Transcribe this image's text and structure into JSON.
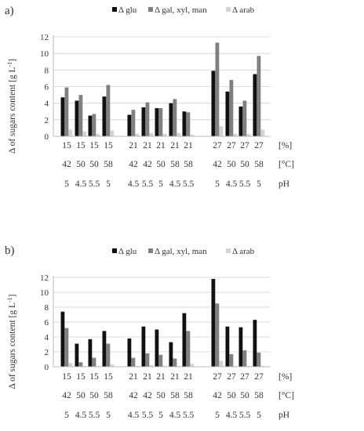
{
  "colors": {
    "glu": "#111111",
    "gal": "#808080",
    "arab": "#d3d3d3",
    "axis": "#bdbdbd",
    "grid": "#d0d0d0",
    "text": "#333333"
  },
  "chart_data": [
    {
      "panel_label": "a)",
      "type": "bar",
      "ylabel_main": "Δ of sugars content [g L",
      "ylabel_sup": "-1",
      "ylabel_end": "]",
      "ylim": [
        0,
        12
      ],
      "yticks": [
        "0",
        "2",
        "4",
        "6",
        "8",
        "10",
        "12"
      ],
      "grid": "horizontal",
      "legend_position": "top-center",
      "row_units": [
        "[%]",
        "[°C]",
        "pH"
      ],
      "groups": [
        {
          "row1": "15",
          "row2": "42",
          "row3": "5"
        },
        {
          "row1": "15",
          "row2": "50",
          "row3": "4.5"
        },
        {
          "row1": "15",
          "row2": "50",
          "row3": "5.5"
        },
        {
          "row1": "15",
          "row2": "58",
          "row3": "5"
        },
        {
          "row1": "21",
          "row2": "42",
          "row3": "4.5"
        },
        {
          "row1": "21",
          "row2": "42",
          "row3": "5.5"
        },
        {
          "row1": "21",
          "row2": "50",
          "row3": "5"
        },
        {
          "row1": "21",
          "row2": "58",
          "row3": "4.5"
        },
        {
          "row1": "21",
          "row2": "58",
          "row3": "5.5"
        },
        {
          "row1": "27",
          "row2": "42",
          "row3": "5"
        },
        {
          "row1": "27",
          "row2": "50",
          "row3": "4.5"
        },
        {
          "row1": "27",
          "row2": "50",
          "row3": "5.5"
        },
        {
          "row1": "27",
          "row2": "58",
          "row3": "5"
        }
      ],
      "series": [
        {
          "name": "Δ glu",
          "key": "glu",
          "values": [
            4.7,
            4.3,
            2.5,
            4.8,
            2.6,
            3.5,
            3.4,
            4.0,
            3.0,
            7.9,
            5.4,
            3.6,
            7.5
          ]
        },
        {
          "name": "Δ gal, xyl, man",
          "key": "gal",
          "values": [
            5.9,
            5.0,
            2.7,
            6.2,
            3.2,
            4.1,
            3.4,
            4.5,
            2.9,
            11.3,
            6.8,
            4.3,
            9.7
          ]
        },
        {
          "name": "Δ arab",
          "key": "arab",
          "values": [
            0.8,
            0.6,
            0.3,
            0.7,
            0.3,
            0.4,
            0.3,
            0.4,
            0.2,
            1.2,
            0.3,
            0.3,
            0.8
          ]
        }
      ]
    },
    {
      "panel_label": "b)",
      "type": "bar",
      "ylabel_main": "Δ of sugars content [g L",
      "ylabel_sup": "-1",
      "ylabel_end": "]",
      "ylim": [
        0,
        12
      ],
      "yticks": [
        "0",
        "2",
        "4",
        "6",
        "8",
        "10",
        "12"
      ],
      "grid": "horizontal",
      "legend_position": "top-center",
      "row_units": [
        "[%]",
        "[°C]",
        "pH"
      ],
      "groups": [
        {
          "row1": "15",
          "row2": "42",
          "row3": "5"
        },
        {
          "row1": "15",
          "row2": "50",
          "row3": "4.5"
        },
        {
          "row1": "15",
          "row2": "50",
          "row3": "5.5"
        },
        {
          "row1": "15",
          "row2": "58",
          "row3": "5"
        },
        {
          "row1": "21",
          "row2": "42",
          "row3": "4.5"
        },
        {
          "row1": "21",
          "row2": "42",
          "row3": "5.5"
        },
        {
          "row1": "21",
          "row2": "50",
          "row3": "5"
        },
        {
          "row1": "21",
          "row2": "58",
          "row3": "4.5"
        },
        {
          "row1": "21",
          "row2": "58",
          "row3": "5.5"
        },
        {
          "row1": "27",
          "row2": "42",
          "row3": "5"
        },
        {
          "row1": "27",
          "row2": "50",
          "row3": "4.5"
        },
        {
          "row1": "27",
          "row2": "50",
          "row3": "5.5"
        },
        {
          "row1": "27",
          "row2": "58",
          "row3": "5"
        }
      ],
      "series": [
        {
          "name": "Δ glu",
          "key": "glu",
          "values": [
            7.4,
            3.1,
            3.7,
            4.8,
            3.8,
            5.4,
            5.0,
            3.3,
            7.2,
            11.8,
            5.4,
            5.3,
            6.3
          ]
        },
        {
          "name": "Δ gal, xyl, man",
          "key": "gal",
          "values": [
            5.2,
            0.6,
            1.2,
            3.1,
            1.2,
            1.8,
            1.6,
            1.1,
            4.8,
            8.5,
            1.7,
            2.2,
            1.9
          ]
        },
        {
          "name": "Δ arab",
          "key": "arab",
          "values": [
            0.5,
            0.1,
            0.1,
            0.3,
            0.1,
            0.2,
            0.1,
            0.1,
            0.4,
            0.8,
            0.1,
            0.1,
            0.1
          ]
        }
      ]
    }
  ]
}
